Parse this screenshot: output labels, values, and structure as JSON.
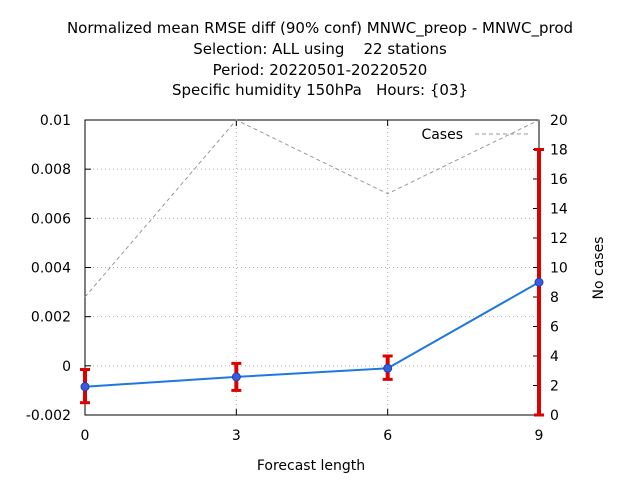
{
  "chart_data": {
    "type": "line",
    "title_lines": [
      "Normalized mean RMSE diff (90% conf) MNWC_preop - MNWC_prod",
      "Selection: ALL using    22 stations",
      "Period: 20220501-20220520",
      "Specific humidity 150hPa   Hours: {03}"
    ],
    "xlabel": "Forecast length",
    "ylabel": "",
    "y2label": "No cases",
    "x_ticks": [
      0,
      3,
      6,
      9
    ],
    "xlim": [
      0,
      9
    ],
    "ylim": [
      -0.002,
      0.01
    ],
    "y_ticks": [
      -0.002,
      0,
      0.002,
      0.004,
      0.006,
      0.008,
      0.01
    ],
    "y_tick_labels": [
      "-0.002",
      "0",
      "0.002",
      "0.004",
      "0.006",
      "0.008",
      "0.01"
    ],
    "y2lim": [
      0,
      20
    ],
    "y2_ticks": [
      0,
      2,
      4,
      6,
      8,
      10,
      12,
      14,
      16,
      18,
      20
    ],
    "grid": true,
    "series": [
      {
        "x": [
          0,
          3,
          6,
          9
        ],
        "values": [
          -0.00085,
          -0.00045,
          -0.0001,
          0.0034
        ],
        "error_low": [
          -0.0015,
          -0.001,
          -0.00055,
          -0.002
        ],
        "error_high": [
          -0.00015,
          0.0001,
          0.0004,
          0.0088
        ],
        "color": "#1f77e0",
        "error_color": "#dd0000"
      },
      {
        "name": "Cases",
        "axis": "y2",
        "x": [
          0,
          3,
          6,
          9
        ],
        "values": [
          8,
          20,
          15,
          20
        ],
        "color": "#999999",
        "dashed": true
      }
    ],
    "legend": {
      "position": "top-right",
      "entries": [
        "Cases"
      ]
    }
  }
}
